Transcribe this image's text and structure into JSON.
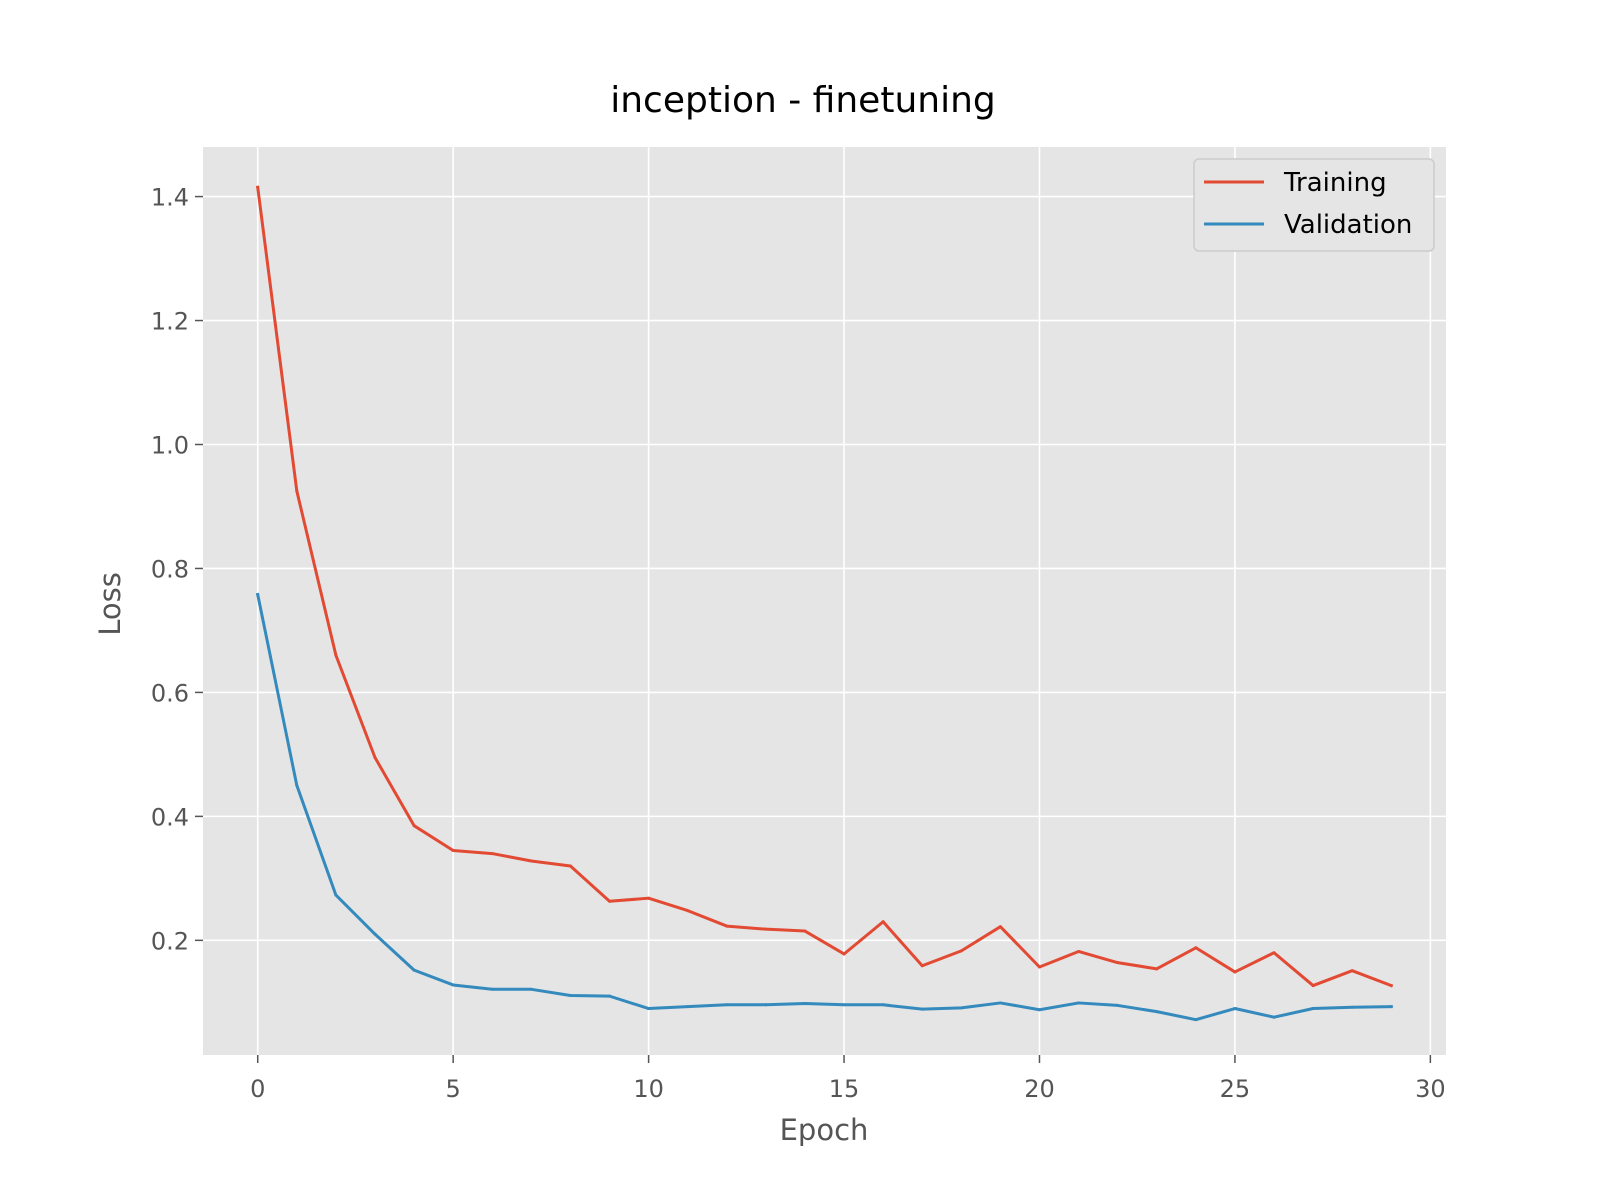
{
  "chart_data": {
    "type": "line",
    "title": "inception - finetuning",
    "xlabel": "Epoch",
    "ylabel": "Loss",
    "xlim": [
      -1.4,
      30.4
    ],
    "ylim": [
      0.015,
      1.48
    ],
    "xticks": [
      0,
      5,
      10,
      15,
      20,
      25,
      30
    ],
    "yticks": [
      0.2,
      0.4,
      0.6,
      0.8,
      1.0,
      1.2,
      1.4
    ],
    "grid": true,
    "style": "ggplot",
    "legend_position": "top-right",
    "x": [
      0,
      1,
      2,
      3,
      4,
      5,
      6,
      7,
      8,
      9,
      10,
      11,
      12,
      13,
      14,
      15,
      16,
      17,
      18,
      19,
      20,
      21,
      22,
      23,
      24,
      25,
      26,
      27,
      28,
      29
    ],
    "series": [
      {
        "name": "Training",
        "color": "#E24A33",
        "values": [
          1.415,
          0.925,
          0.66,
          0.495,
          0.385,
          0.345,
          0.34,
          0.328,
          0.32,
          0.263,
          0.268,
          0.248,
          0.223,
          0.218,
          0.215,
          0.178,
          0.23,
          0.159,
          0.183,
          0.222,
          0.157,
          0.182,
          0.164,
          0.154,
          0.188,
          0.149,
          0.18,
          0.127,
          0.151,
          0.127
        ]
      },
      {
        "name": "Validation",
        "color": "#348ABD",
        "values": [
          0.758,
          0.45,
          0.273,
          0.21,
          0.152,
          0.128,
          0.121,
          0.121,
          0.111,
          0.11,
          0.09,
          0.093,
          0.096,
          0.096,
          0.098,
          0.096,
          0.096,
          0.089,
          0.091,
          0.099,
          0.088,
          0.099,
          0.095,
          0.085,
          0.072,
          0.09,
          0.076,
          0.09,
          0.092,
          0.093
        ]
      }
    ]
  }
}
